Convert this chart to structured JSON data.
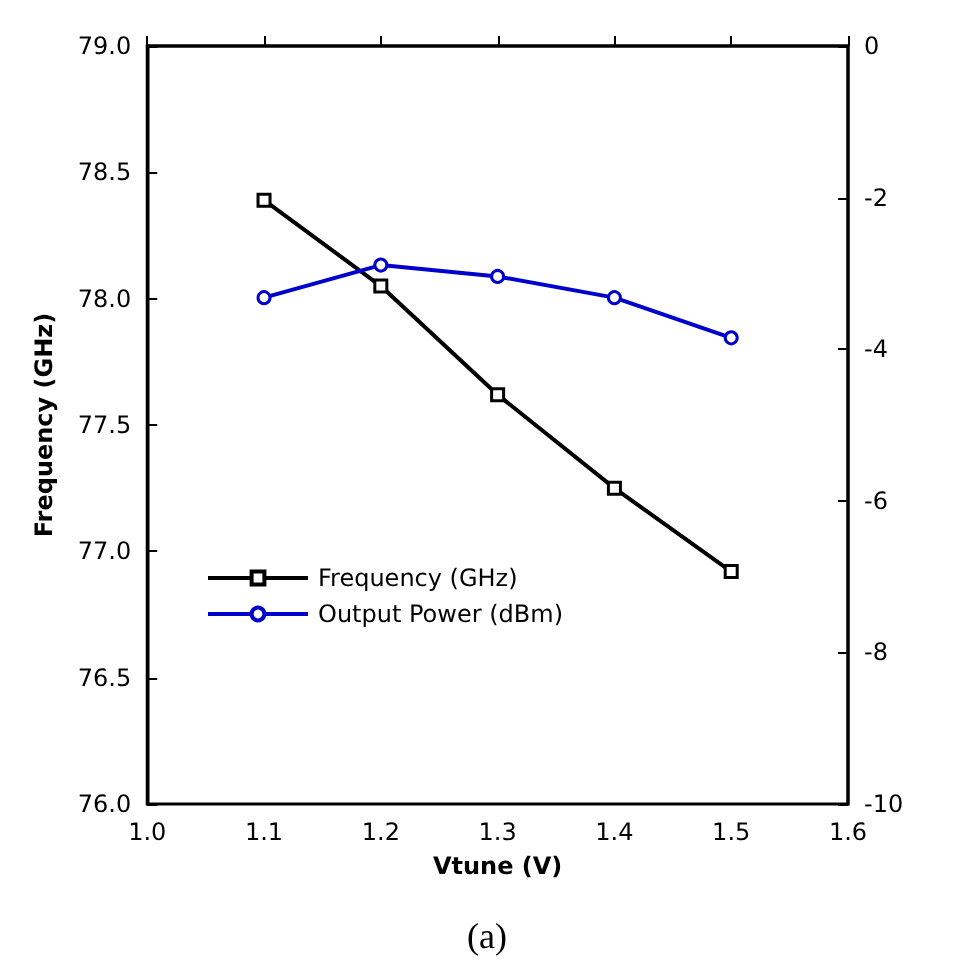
{
  "chart_data": {
    "type": "line",
    "xlabel": "Vtune (V)",
    "ylabel": "Frequency (GHz)",
    "x": [
      1.1,
      1.2,
      1.3,
      1.4,
      1.5
    ],
    "series": [
      {
        "name": "Frequency (GHz)",
        "color": "#000000",
        "values": [
          78.39,
          78.05,
          77.62,
          77.25,
          76.92
        ],
        "marker": "square"
      },
      {
        "name": "Output Power (dBm)",
        "color": "#0000cc",
        "values": [
          -3.32,
          -2.89,
          -3.04,
          -3.32,
          -3.85
        ],
        "marker": "circle",
        "axis": "y2"
      }
    ],
    "xlim": [
      1.0,
      1.6
    ],
    "xticks": [
      {
        "value": 1.0,
        "label": "1.0"
      },
      {
        "value": 1.1,
        "label": "1.1"
      },
      {
        "value": 1.2,
        "label": "1.2"
      },
      {
        "value": 1.3,
        "label": "1.3"
      },
      {
        "value": 1.4,
        "label": "1.4"
      },
      {
        "value": 1.5,
        "label": "1.5"
      },
      {
        "value": 1.6,
        "label": "1.6"
      }
    ],
    "ylim": [
      76,
      79
    ],
    "yticks": [
      {
        "value": 76,
        "label": "76.0"
      },
      {
        "value": 76.5,
        "label": "76.5"
      },
      {
        "value": 77,
        "label": "77.0"
      },
      {
        "value": 77.5,
        "label": "77.5"
      },
      {
        "value": 78,
        "label": "78.0"
      },
      {
        "value": 78.5,
        "label": "78.5"
      },
      {
        "value": 79,
        "label": "79.0"
      }
    ],
    "y2lim": [
      -10,
      0
    ],
    "y2ticks": [
      -10,
      -8,
      -6,
      -4,
      -2,
      0
    ],
    "legend": "center",
    "grid": false,
    "line_style": "solid",
    "annotations": [
      "(a)"
    ]
  }
}
